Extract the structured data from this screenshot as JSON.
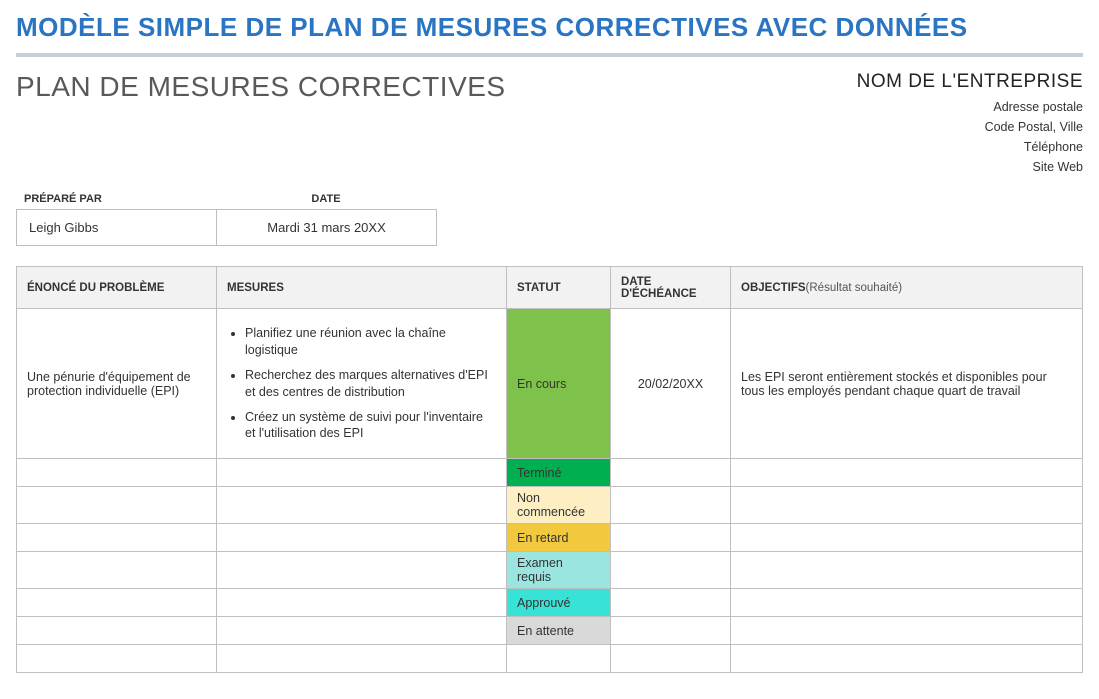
{
  "main_title": "MODÈLE SIMPLE DE PLAN DE MESURES CORRECTIVES AVEC DONNÉES",
  "subtitle": "PLAN DE MESURES CORRECTIVES",
  "company": {
    "name": "NOM DE L'ENTREPRISE",
    "address1": "Adresse postale",
    "address2": "Code Postal, Ville",
    "phone": "Téléphone",
    "web": "Site Web"
  },
  "prep": {
    "label_prepared": "PRÉPARÉ PAR",
    "label_date": "DATE",
    "prepared_by": "Leigh Gibbs",
    "date": "Mardi 31 mars 20XX"
  },
  "columns": {
    "problem": "ÉNONCÉ DU PROBLÈME",
    "measures": "MESURES",
    "status": "STATUT",
    "due_date": "DATE D'ÉCHÉANCE",
    "objectives": "OBJECTIFS",
    "objectives_sub": "(Résultat souhaité)"
  },
  "row1": {
    "problem": "Une pénurie d'équipement de protection individuelle (EPI)",
    "measures": [
      "Planifiez une réunion avec la chaîne logistique",
      "Recherchez des marques alternatives d'EPI et des centres de distribution",
      "Créez un système de suivi pour l'inventaire et l'utilisation des EPI"
    ],
    "status": "En cours",
    "due_date": "20/02/20XX",
    "objective": "Les EPI seront entièrement stockés et disponibles pour tous les employés pendant chaque quart de travail"
  },
  "status_options": {
    "termine": "Terminé",
    "non_commencee": "Non commencée",
    "en_retard": "En retard",
    "examen_requis": "Examen requis",
    "approuve": "Approuvé",
    "en_attente": "En attente"
  },
  "colors": {
    "title_blue": "#2a74c4",
    "hr_grey": "#c7cedb",
    "header_bg": "#f2f2f2",
    "border": "#bfbfbf",
    "status_en_cours": "#7fc24b",
    "status_termine": "#00b050",
    "status_non_commencee": "#fdefc3",
    "status_en_retard": "#f2c83f",
    "status_examen": "#9be5e0",
    "status_approuve": "#38e2d6",
    "status_en_attente": "#d9d9d9"
  }
}
